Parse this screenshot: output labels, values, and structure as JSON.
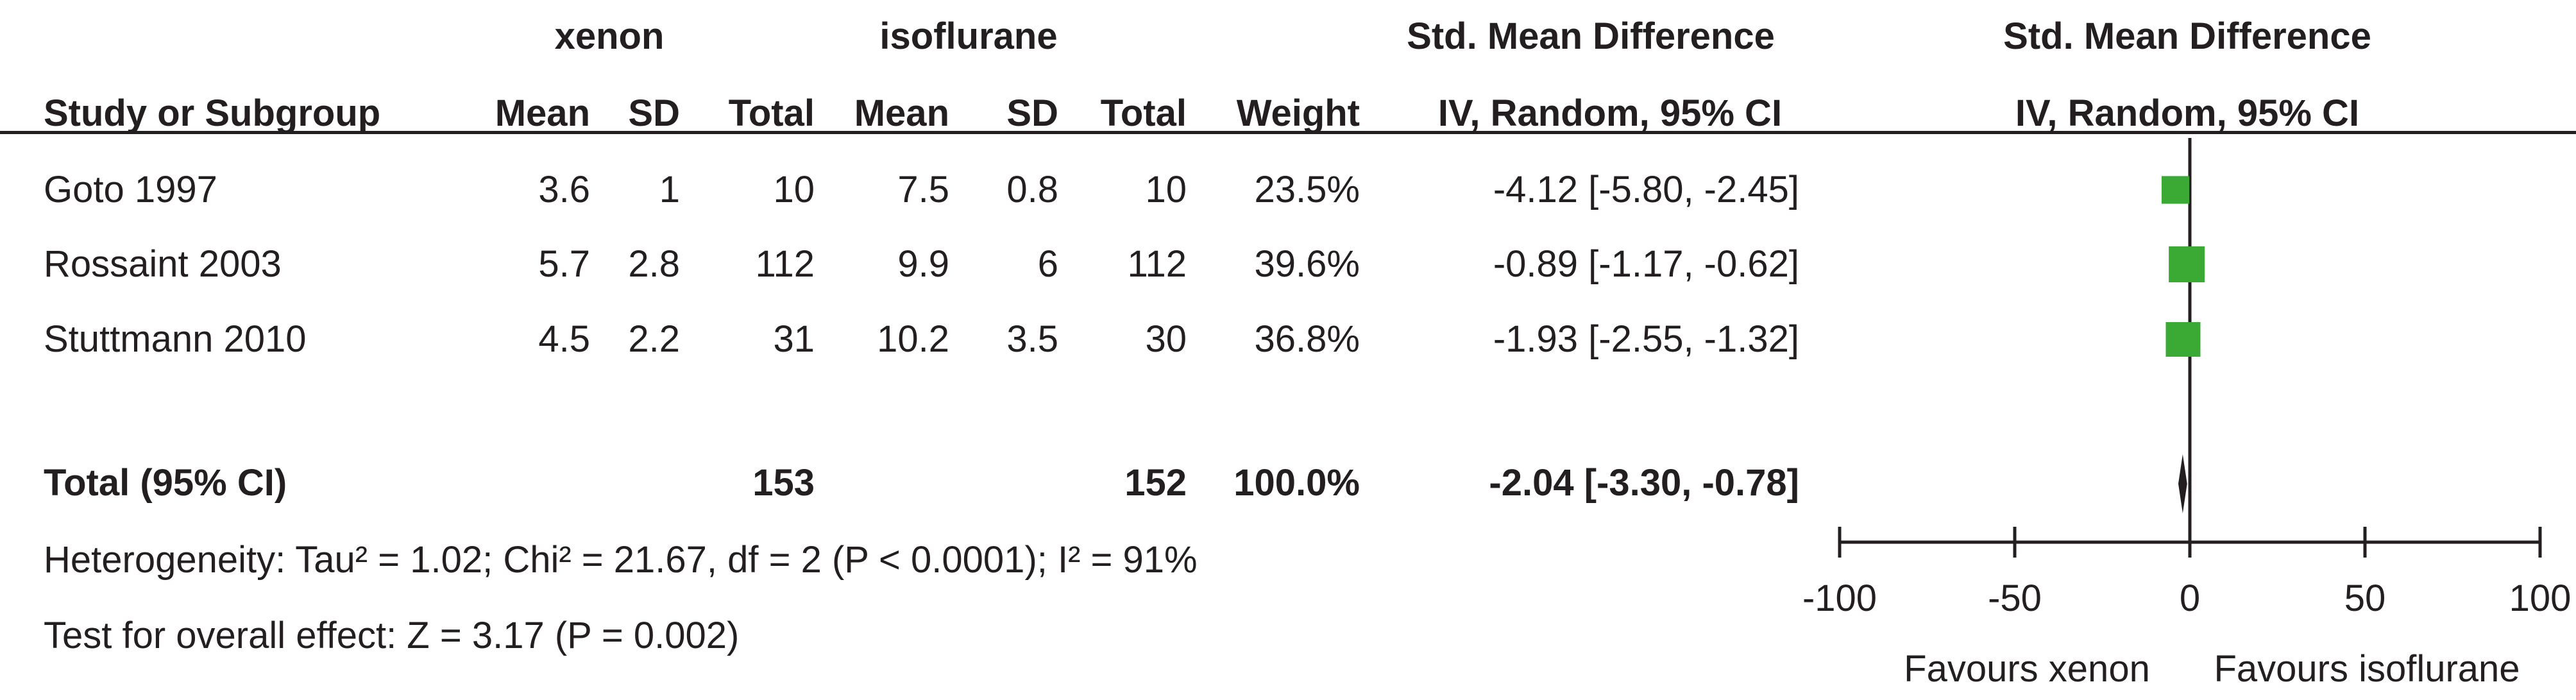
{
  "headers": {
    "group1": "xenon",
    "group2": "isoflurane",
    "effect_left": "Std. Mean Difference",
    "effect_right": "Std. Mean Difference",
    "study": "Study or Subgroup",
    "mean1": "Mean",
    "sd1": "SD",
    "total1": "Total",
    "mean2": "Mean",
    "sd2": "SD",
    "total2": "Total",
    "weight": "Weight",
    "ci_left": "IV, Random, 95% CI",
    "ci_right": "IV, Random, 95% CI"
  },
  "studies": [
    {
      "name": "Goto 1997",
      "mean1": "3.6",
      "sd1": "1",
      "total1": "10",
      "mean2": "7.5",
      "sd2": "0.8",
      "total2": "10",
      "weight": "23.5%",
      "ci": "-4.12 [-5.80, -2.45]"
    },
    {
      "name": "Rossaint 2003",
      "mean1": "5.7",
      "sd1": "2.8",
      "total1": "112",
      "mean2": "9.9",
      "sd2": "6",
      "total2": "112",
      "weight": "39.6%",
      "ci": "-0.89 [-1.17, -0.62]"
    },
    {
      "name": "Stuttmann 2010",
      "mean1": "4.5",
      "sd1": "2.2",
      "total1": "31",
      "mean2": "10.2",
      "sd2": "3.5",
      "total2": "30",
      "weight": "36.8%",
      "ci": "-1.93 [-2.55, -1.32]"
    }
  ],
  "total": {
    "label": "Total (95% CI)",
    "total1": "153",
    "total2": "152",
    "weight": "100.0%",
    "ci": "-2.04 [-3.30, -0.78]"
  },
  "heterogeneity": "Heterogeneity: Tau² = 1.02; Chi² = 21.67, df = 2 (P < 0.0001); I² = 91%",
  "overall_effect": "Test for overall effect: Z = 3.17 (P = 0.002)",
  "favours_left": "Favours xenon",
  "favours_right": "Favours isoflurane",
  "chart_data": {
    "type": "forest",
    "xlim": [
      -100,
      100
    ],
    "ticks": [
      -100,
      -50,
      0,
      50,
      100
    ],
    "tick_labels": [
      "-100",
      "-50",
      "0",
      "50",
      "100"
    ],
    "marker_color": "#3aaa35",
    "studies": [
      {
        "name": "Goto 1997",
        "estimate": -4.12,
        "lower": -5.8,
        "upper": -2.45,
        "weight": 23.5
      },
      {
        "name": "Rossaint 2003",
        "estimate": -0.89,
        "lower": -1.17,
        "upper": -0.62,
        "weight": 39.6
      },
      {
        "name": "Stuttmann 2010",
        "estimate": -1.93,
        "lower": -2.55,
        "upper": -1.32,
        "weight": 36.8
      }
    ],
    "pooled": {
      "estimate": -2.04,
      "lower": -3.3,
      "upper": -0.78
    }
  }
}
